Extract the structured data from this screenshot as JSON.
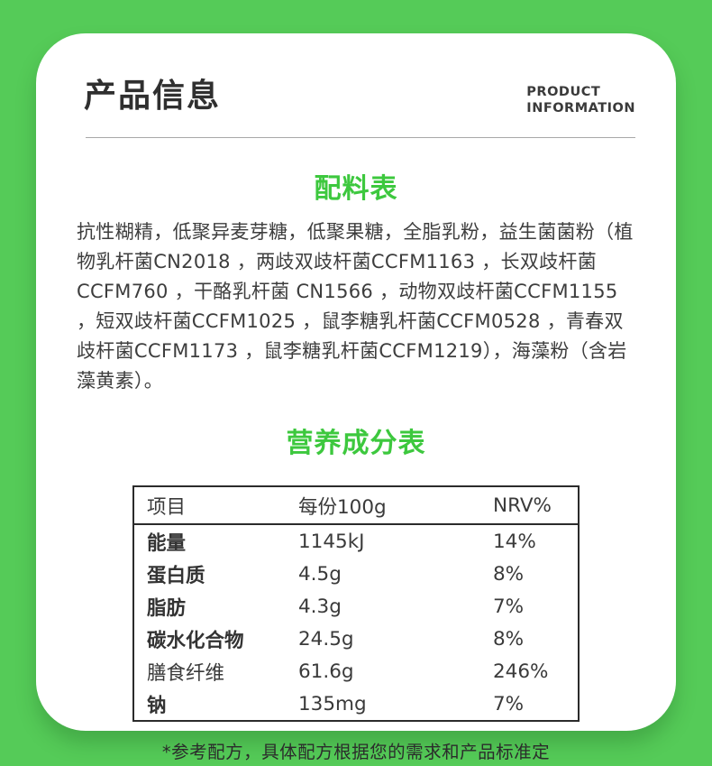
{
  "colors": {
    "background_green": "#55cb58",
    "heading_green": "#3dc83e",
    "card_white": "#ffffff",
    "text_dark": "#3d3d3d",
    "table_border": "#2b2b2b"
  },
  "header": {
    "title": "产品信息",
    "subtitle_line1": "PRODUCT",
    "subtitle_line2": "INFORMATION"
  },
  "ingredients_section": {
    "heading": "配料表",
    "text": "抗性糊精，低聚异麦芽糖，低聚果糖，全脂乳粉，益生菌菌粉（植物乳杆菌CN2018 ，两歧双歧杆菌CCFM1163 ，长双歧杆菌CCFM760 ，干酪乳杆菌 CN1566 ，动物双歧杆菌CCFM1155 ，短双歧杆菌CCFM1025 ，鼠李糖乳杆菌CCFM0528 ，青春双歧杆菌CCFM1173 ，鼠李糖乳杆菌CCFM1219），海藻粉（含岩藻黄素）。"
  },
  "nutrition": {
    "heading": "营养成分表",
    "headers": [
      "项目",
      "每份100g",
      "NRV%"
    ],
    "rows": [
      {
        "item": "能量",
        "per100g": "1145kJ",
        "nrv": "14%",
        "bold": true
      },
      {
        "item": "蛋白质",
        "per100g": "4.5g",
        "nrv": "8%",
        "bold": true
      },
      {
        "item": "脂肪",
        "per100g": "4.3g",
        "nrv": "7%",
        "bold": true
      },
      {
        "item": "碳水化合物",
        "per100g": "24.5g",
        "nrv": "8%",
        "bold": true
      },
      {
        "item": "膳食纤维",
        "per100g": "61.6g",
        "nrv": "246%",
        "bold": false
      },
      {
        "item": "钠",
        "per100g": "135mg",
        "nrv": "7%",
        "bold": true
      }
    ],
    "footnote": "*参考配方，具体配方根据您的需求和产品标准定"
  }
}
